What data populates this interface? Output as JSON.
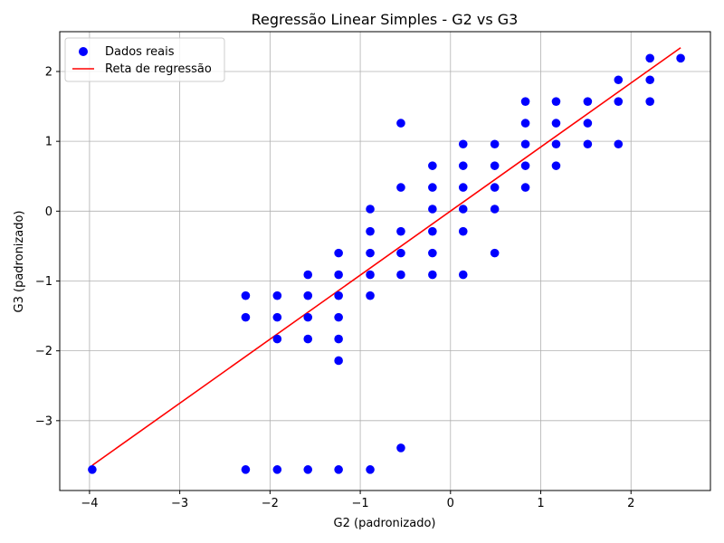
{
  "chart_data": {
    "type": "scatter",
    "title": "Regressão Linear Simples - G2 vs G3",
    "xlabel": "G2 (padronizado)",
    "ylabel": "G3 (padronizado)",
    "xlim": [
      -4.33,
      2.88
    ],
    "ylim": [
      -4.0,
      2.57
    ],
    "x_ticks": [
      {
        "value": -4,
        "label": "−4"
      },
      {
        "value": -3,
        "label": "−3"
      },
      {
        "value": -2,
        "label": "−2"
      },
      {
        "value": -1,
        "label": "−1"
      },
      {
        "value": 0,
        "label": "0"
      },
      {
        "value": 1,
        "label": "1"
      },
      {
        "value": 2,
        "label": "2"
      }
    ],
    "y_ticks": [
      {
        "value": -3,
        "label": "−3"
      },
      {
        "value": -2,
        "label": "−2"
      },
      {
        "value": -1,
        "label": "−1"
      },
      {
        "value": 0,
        "label": "0"
      },
      {
        "value": 1,
        "label": "1"
      },
      {
        "value": 2,
        "label": "2"
      }
    ],
    "grid": true,
    "legend_position": "top-left",
    "series": [
      {
        "name": "Dados reais",
        "kind": "scatter",
        "color": "#0000ff",
        "points": [
          [
            -3.97,
            -3.7
          ],
          [
            -2.27,
            -1.21
          ],
          [
            -2.27,
            -1.52
          ],
          [
            -2.27,
            -3.7
          ],
          [
            -1.92,
            -1.21
          ],
          [
            -1.92,
            -1.52
          ],
          [
            -1.92,
            -1.83
          ],
          [
            -1.92,
            -3.7
          ],
          [
            -1.58,
            -0.91
          ],
          [
            -1.58,
            -1.21
          ],
          [
            -1.58,
            -1.52
          ],
          [
            -1.58,
            -1.83
          ],
          [
            -1.58,
            -3.7
          ],
          [
            -1.24,
            -0.6
          ],
          [
            -1.24,
            -0.91
          ],
          [
            -1.24,
            -1.21
          ],
          [
            -1.24,
            -1.52
          ],
          [
            -1.24,
            -1.83
          ],
          [
            -1.24,
            -2.14
          ],
          [
            -1.24,
            -3.7
          ],
          [
            -0.89,
            0.03
          ],
          [
            -0.89,
            -0.29
          ],
          [
            -0.89,
            -0.6
          ],
          [
            -0.89,
            -0.91
          ],
          [
            -0.89,
            -1.21
          ],
          [
            -0.89,
            -3.7
          ],
          [
            -0.55,
            1.26
          ],
          [
            -0.55,
            0.34
          ],
          [
            -0.55,
            -0.29
          ],
          [
            -0.55,
            -0.6
          ],
          [
            -0.55,
            -0.91
          ],
          [
            -0.55,
            -3.39
          ],
          [
            -0.2,
            0.65
          ],
          [
            -0.2,
            0.34
          ],
          [
            -0.2,
            0.03
          ],
          [
            -0.2,
            -0.29
          ],
          [
            -0.2,
            -0.6
          ],
          [
            -0.2,
            -0.91
          ],
          [
            0.14,
            0.96
          ],
          [
            0.14,
            0.65
          ],
          [
            0.14,
            0.34
          ],
          [
            0.14,
            0.03
          ],
          [
            0.14,
            -0.29
          ],
          [
            0.14,
            -0.91
          ],
          [
            0.49,
            0.96
          ],
          [
            0.49,
            0.65
          ],
          [
            0.49,
            0.34
          ],
          [
            0.49,
            0.03
          ],
          [
            0.49,
            -0.6
          ],
          [
            0.83,
            1.57
          ],
          [
            0.83,
            1.26
          ],
          [
            0.83,
            0.96
          ],
          [
            0.83,
            0.65
          ],
          [
            0.83,
            0.34
          ],
          [
            1.17,
            1.57
          ],
          [
            1.17,
            1.26
          ],
          [
            1.17,
            0.96
          ],
          [
            1.17,
            0.65
          ],
          [
            1.52,
            1.57
          ],
          [
            1.52,
            1.26
          ],
          [
            1.52,
            0.96
          ],
          [
            1.86,
            1.88
          ],
          [
            1.86,
            1.57
          ],
          [
            1.86,
            0.96
          ],
          [
            2.21,
            2.19
          ],
          [
            2.21,
            1.88
          ],
          [
            2.21,
            1.57
          ],
          [
            2.55,
            2.19
          ]
        ]
      },
      {
        "name": "Reta de regressão",
        "kind": "line",
        "color": "#ff0000",
        "x": [
          -3.97,
          2.55
        ],
        "y": [
          -3.64,
          2.34
        ]
      }
    ]
  }
}
